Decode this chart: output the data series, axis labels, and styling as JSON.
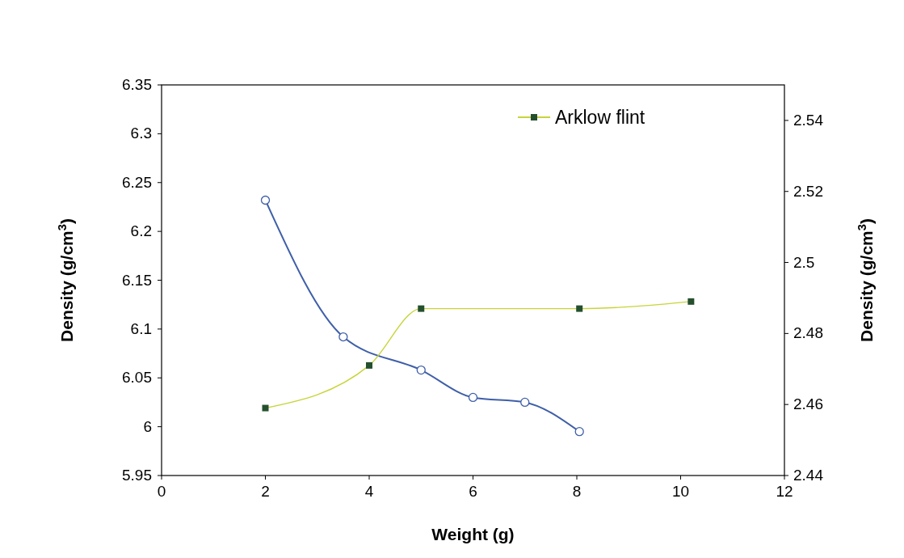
{
  "chart_data": {
    "type": "line",
    "xlabel": "Weight (g)",
    "ylabel": "Density (g/cm$^{3}$)",
    "y2label": "Density (g/cm$^{3}$)",
    "xlim": [
      0,
      12
    ],
    "xticks": [
      0,
      2,
      4,
      6,
      8,
      10,
      12
    ],
    "ylim": [
      5.95,
      6.35
    ],
    "yticks": [
      5.95,
      6,
      6.05,
      6.1,
      6.15,
      6.2,
      6.25,
      6.3,
      6.35
    ],
    "y2lim": [
      2.44,
      2.55
    ],
    "y2ticks": [
      2.44,
      2.46,
      2.48,
      2.5,
      2.52,
      2.54
    ],
    "legend": "top right",
    "grid": false,
    "series": [
      {
        "color": "#3f5fa8",
        "marker": "circle",
        "x": [
          2,
          3.5,
          5,
          6,
          7,
          8.05
        ],
        "values": [
          6.232,
          6.092,
          6.058,
          6.03,
          6.025,
          5.995
        ]
      },
      {
        "name": "Arklow flint",
        "color": "#c8d43a",
        "marker": "square",
        "axis": "y2",
        "x": [
          2,
          4,
          5,
          8.05,
          10.2
        ],
        "values": [
          2.459,
          2.471,
          2.487,
          2.487,
          2.489
        ]
      }
    ]
  }
}
